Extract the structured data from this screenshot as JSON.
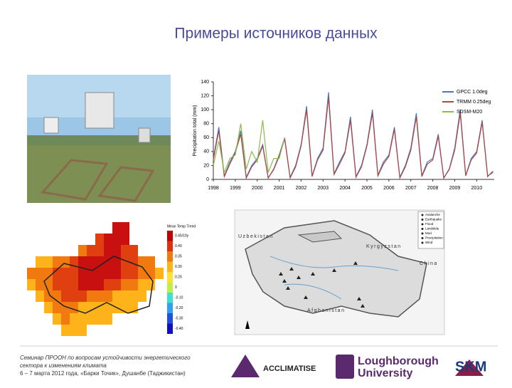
{
  "header": {
    "title": "Примеры источников данных"
  },
  "chart_data": {
    "type": "line",
    "ylabel": "Precipitation total (mm)",
    "x": [
      1998,
      1998.25,
      1998.5,
      1998.75,
      1999,
      1999.25,
      1999.5,
      1999.75,
      2000,
      2000.25,
      2000.5,
      2000.75,
      2001,
      2001.25,
      2001.5,
      2001.75,
      2002,
      2002.25,
      2002.5,
      2002.75,
      2003,
      2003.25,
      2003.5,
      2003.75,
      2004,
      2004.25,
      2004.5,
      2004.75,
      2005,
      2005.25,
      2005.5,
      2005.75,
      2006,
      2006.25,
      2006.5,
      2006.75,
      2007,
      2007.25,
      2007.5,
      2007.75,
      2008,
      2008.25,
      2008.5,
      2008.75,
      2009,
      2009.25,
      2009.5,
      2009.75,
      2010,
      2010.25,
      2010.5,
      2010.75
    ],
    "series": [
      {
        "name": "GPCC 1.0deg",
        "color": "#3a7fc1",
        "values": [
          30,
          75,
          5,
          25,
          40,
          70,
          3,
          20,
          30,
          50,
          2,
          15,
          35,
          60,
          3,
          20,
          50,
          105,
          5,
          30,
          45,
          125,
          8,
          25,
          40,
          90,
          4,
          20,
          50,
          100,
          6,
          25,
          35,
          75,
          3,
          20,
          45,
          95,
          5,
          25,
          30,
          65,
          2,
          15,
          45,
          100,
          6,
          30,
          40,
          85,
          5,
          10
        ]
      },
      {
        "name": "TRMM 0.25deg",
        "color": "#b5433f",
        "values": [
          28,
          70,
          4,
          22,
          38,
          65,
          2,
          18,
          28,
          48,
          2,
          14,
          33,
          58,
          2,
          18,
          48,
          100,
          4,
          28,
          42,
          118,
          7,
          22,
          38,
          85,
          3,
          18,
          48,
          95,
          5,
          22,
          33,
          72,
          2,
          18,
          42,
          90,
          4,
          22,
          28,
          62,
          2,
          14,
          42,
          95,
          5,
          28,
          38,
          82,
          4,
          12
        ]
      },
      {
        "name": "SDSM-M20",
        "color": "#8dbb4a",
        "values": [
          20,
          55,
          10,
          30,
          35,
          80,
          15,
          40,
          25,
          85,
          10,
          30,
          30,
          60,
          null,
          null,
          null,
          null,
          null,
          null,
          null,
          null,
          null,
          null,
          null,
          null,
          null,
          null,
          null,
          null,
          null,
          null,
          null,
          null,
          null,
          null,
          null,
          null,
          null,
          null,
          null,
          null,
          null,
          null,
          null,
          null,
          null,
          null,
          null,
          null,
          null,
          null
        ]
      }
    ],
    "xlim": [
      1998,
      2010.8
    ],
    "xticks": [
      1998,
      1999,
      2000,
      2001,
      2002,
      2003,
      2004,
      2005,
      2006,
      2007,
      2008,
      2009,
      2010
    ],
    "ylim": [
      0,
      140
    ],
    "yticks": [
      0,
      20,
      40,
      60,
      80,
      100,
      120,
      140
    ],
    "legend": "top-right"
  },
  "temp_map": {
    "legend_title": "Mean Temp Trend",
    "legend_labels": [
      "0.45/10y",
      "0.40",
      "0.35",
      "0.30",
      "0.25",
      "0",
      "-0.10",
      "-0.20",
      "-0.30",
      "-0.40"
    ]
  },
  "hazard_map": {
    "countries": [
      "Uzbekistan",
      "Kyrgyzstan",
      "China",
      "Afghanistan"
    ],
    "legend": [
      "Avalanche",
      "Earthquake",
      "Flood",
      "Landslide",
      "Mud",
      "Precipitation",
      "Wind"
    ]
  },
  "footer": {
    "lines": [
      "Семинар ПРООН по вопросам устойчивости энергетического",
      "сектора к изменениям климата",
      "6 – 7 марта 2012 года, «Барки Точик», Душанбе (Таджикистан)"
    ],
    "logos": [
      "ACCLIMATISE",
      "Loughborough",
      "University",
      "SKM"
    ]
  }
}
